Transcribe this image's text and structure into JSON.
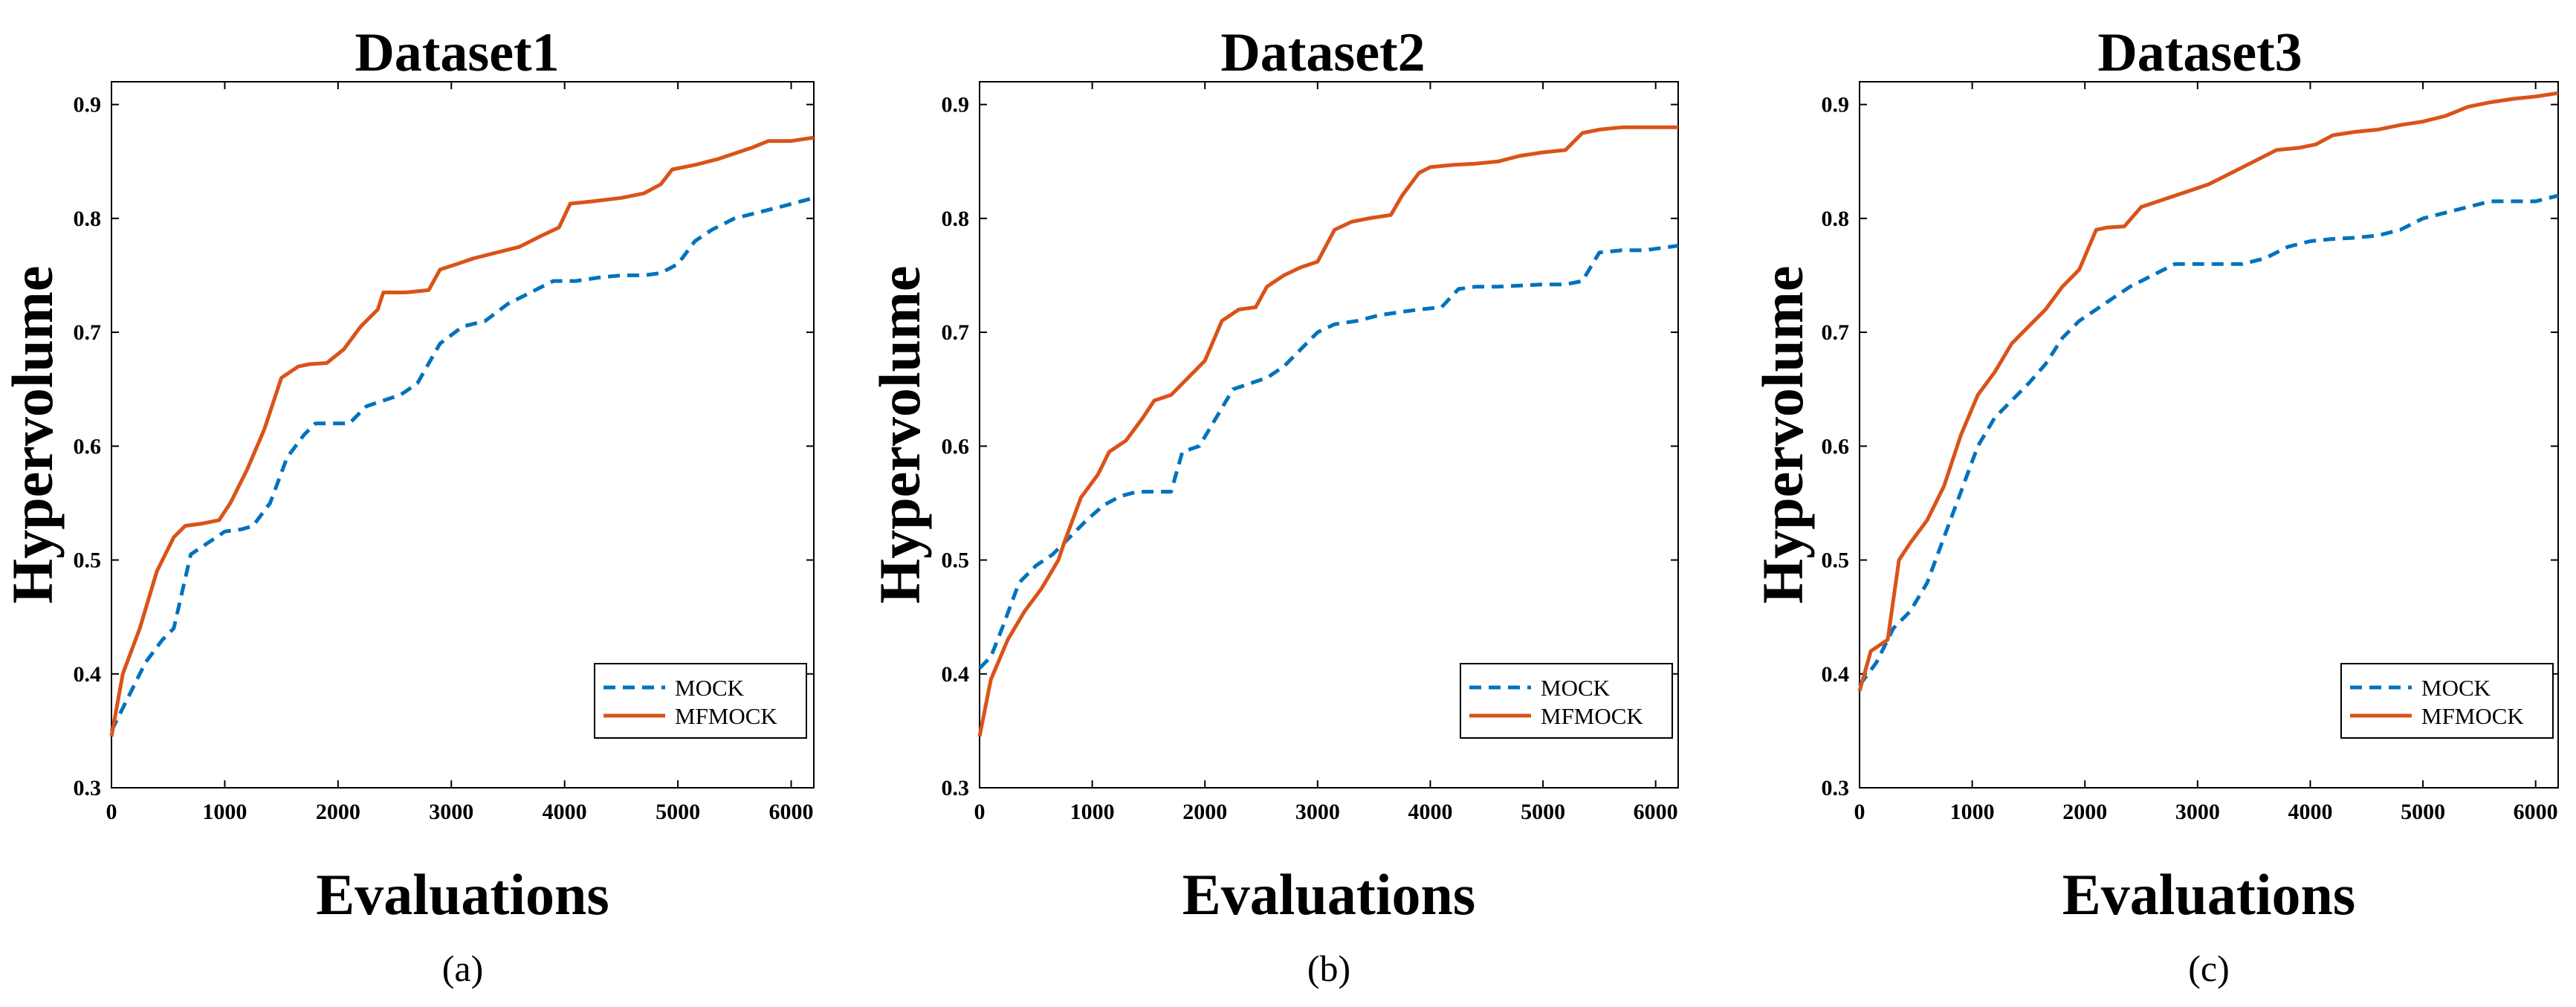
{
  "colors": {
    "mock": "#0072BD",
    "mfmock": "#D95319",
    "axis": "#000000"
  },
  "chart_data": [
    {
      "type": "line",
      "caption": "(a)",
      "title": "Dataset1",
      "xlabel": "Evaluations",
      "ylabel": "Hypervolume",
      "xlim": [
        0,
        6200
      ],
      "ylim": [
        0.3,
        0.92
      ],
      "xticks": [
        0,
        1000,
        2000,
        3000,
        4000,
        5000,
        6000
      ],
      "yticks": [
        0.3,
        0.4,
        0.5,
        0.6,
        0.7,
        0.8,
        0.9
      ],
      "ytick_labels": [
        "0.3",
        "0.4",
        "0.5",
        "0.6",
        "0.7",
        "0.8",
        "0.9"
      ],
      "legend_position": "bottom-right",
      "series": [
        {
          "name": "MOCK",
          "style": "dashed",
          "x": [
            0,
            150,
            300,
            450,
            550,
            700,
            850,
            1000,
            1150,
            1250,
            1400,
            1550,
            1700,
            1800,
            2000,
            2100,
            2250,
            2400,
            2550,
            2700,
            2900,
            3100,
            3300,
            3500,
            3700,
            3900,
            4100,
            4300,
            4500,
            4700,
            4850,
            5000,
            5150,
            5300,
            5500,
            5700,
            5900,
            6200
          ],
          "y": [
            0.35,
            0.38,
            0.41,
            0.43,
            0.44,
            0.505,
            0.515,
            0.525,
            0.527,
            0.53,
            0.55,
            0.59,
            0.61,
            0.62,
            0.62,
            0.62,
            0.635,
            0.64,
            0.645,
            0.655,
            0.69,
            0.705,
            0.71,
            0.725,
            0.735,
            0.745,
            0.745,
            0.748,
            0.75,
            0.75,
            0.752,
            0.76,
            0.78,
            0.79,
            0.8,
            0.805,
            0.81,
            0.818
          ]
        },
        {
          "name": "MFMOCK",
          "style": "solid",
          "x": [
            0,
            100,
            250,
            400,
            550,
            650,
            800,
            950,
            1050,
            1200,
            1350,
            1500,
            1650,
            1750,
            1900,
            2050,
            2200,
            2350,
            2400,
            2600,
            2800,
            2900,
            3050,
            3200,
            3400,
            3600,
            3800,
            3950,
            4050,
            4250,
            4500,
            4700,
            4850,
            4950,
            5150,
            5350,
            5500,
            5650,
            5800,
            6000,
            6200
          ],
          "y": [
            0.345,
            0.4,
            0.44,
            0.49,
            0.52,
            0.53,
            0.532,
            0.535,
            0.55,
            0.58,
            0.615,
            0.66,
            0.67,
            0.672,
            0.673,
            0.685,
            0.705,
            0.72,
            0.735,
            0.735,
            0.737,
            0.755,
            0.76,
            0.765,
            0.77,
            0.775,
            0.785,
            0.792,
            0.813,
            0.815,
            0.818,
            0.822,
            0.83,
            0.843,
            0.847,
            0.852,
            0.857,
            0.862,
            0.868,
            0.868,
            0.871
          ]
        }
      ]
    },
    {
      "type": "line",
      "caption": "(b)",
      "title": "Dataset2",
      "xlabel": "Evaluations",
      "ylabel": "Hypervolume",
      "xlim": [
        0,
        6200
      ],
      "ylim": [
        0.3,
        0.92
      ],
      "xticks": [
        0,
        1000,
        2000,
        3000,
        4000,
        5000,
        6000
      ],
      "yticks": [
        0.3,
        0.4,
        0.5,
        0.6,
        0.7,
        0.8,
        0.9
      ],
      "ytick_labels": [
        "0.3",
        "0.4",
        "0.5",
        "0.6",
        "0.7",
        "0.8",
        "0.9"
      ],
      "legend_position": "bottom-right",
      "series": [
        {
          "name": "MOCK",
          "style": "dashed",
          "x": [
            0,
            100,
            200,
            350,
            500,
            650,
            800,
            950,
            1100,
            1250,
            1400,
            1550,
            1700,
            1800,
            1950,
            2100,
            2250,
            2400,
            2550,
            2700,
            2850,
            3000,
            3150,
            3350,
            3550,
            3750,
            3900,
            4100,
            4250,
            4400,
            4600,
            4800,
            5000,
            5200,
            5350,
            5500,
            5700,
            5900,
            6200
          ],
          "y": [
            0.405,
            0.415,
            0.44,
            0.48,
            0.495,
            0.505,
            0.52,
            0.535,
            0.548,
            0.556,
            0.56,
            0.56,
            0.56,
            0.595,
            0.6,
            0.625,
            0.65,
            0.655,
            0.66,
            0.67,
            0.685,
            0.7,
            0.707,
            0.71,
            0.715,
            0.718,
            0.72,
            0.722,
            0.738,
            0.74,
            0.74,
            0.741,
            0.742,
            0.742,
            0.745,
            0.77,
            0.772,
            0.772,
            0.776
          ]
        },
        {
          "name": "MFMOCK",
          "style": "solid",
          "x": [
            0,
            100,
            250,
            400,
            550,
            700,
            750,
            900,
            1050,
            1150,
            1300,
            1450,
            1550,
            1700,
            1850,
            2000,
            2150,
            2300,
            2450,
            2550,
            2700,
            2850,
            3000,
            3150,
            3300,
            3450,
            3650,
            3750,
            3900,
            4000,
            4200,
            4400,
            4600,
            4800,
            5000,
            5200,
            5350,
            5500,
            5700,
            6000,
            6200
          ],
          "y": [
            0.345,
            0.395,
            0.43,
            0.455,
            0.475,
            0.5,
            0.515,
            0.555,
            0.575,
            0.595,
            0.605,
            0.625,
            0.64,
            0.645,
            0.66,
            0.675,
            0.71,
            0.72,
            0.722,
            0.74,
            0.75,
            0.757,
            0.762,
            0.79,
            0.797,
            0.8,
            0.803,
            0.82,
            0.84,
            0.845,
            0.847,
            0.848,
            0.85,
            0.855,
            0.858,
            0.86,
            0.875,
            0.878,
            0.88,
            0.88,
            0.88
          ]
        }
      ]
    },
    {
      "type": "line",
      "caption": "(c)",
      "title": "Dataset3",
      "xlabel": "Evaluations",
      "ylabel": "Hypervolume",
      "xlim": [
        0,
        6200
      ],
      "ylim": [
        0.3,
        0.92
      ],
      "xticks": [
        0,
        1000,
        2000,
        3000,
        4000,
        5000,
        6000
      ],
      "yticks": [
        0.3,
        0.4,
        0.5,
        0.6,
        0.7,
        0.8,
        0.9
      ],
      "ytick_labels": [
        "0.3",
        "0.4",
        "0.5",
        "0.6",
        "0.7",
        "0.8",
        "0.9"
      ],
      "legend_position": "bottom-right",
      "series": [
        {
          "name": "MOCK",
          "style": "dashed",
          "x": [
            0,
            150,
            300,
            450,
            600,
            750,
            900,
            1050,
            1200,
            1350,
            1500,
            1650,
            1800,
            1950,
            2100,
            2250,
            2400,
            2600,
            2800,
            3000,
            3200,
            3400,
            3600,
            3800,
            4000,
            4200,
            4400,
            4600,
            4800,
            5000,
            5200,
            5400,
            5600,
            5800,
            6000,
            6200
          ],
          "y": [
            0.39,
            0.41,
            0.44,
            0.455,
            0.48,
            0.52,
            0.56,
            0.6,
            0.625,
            0.64,
            0.655,
            0.672,
            0.695,
            0.71,
            0.72,
            0.73,
            0.74,
            0.75,
            0.76,
            0.76,
            0.76,
            0.76,
            0.765,
            0.775,
            0.78,
            0.782,
            0.783,
            0.785,
            0.79,
            0.8,
            0.805,
            0.81,
            0.815,
            0.815,
            0.815,
            0.82
          ]
        },
        {
          "name": "MFMOCK",
          "style": "solid",
          "x": [
            0,
            100,
            250,
            350,
            450,
            600,
            750,
            900,
            1050,
            1200,
            1350,
            1500,
            1650,
            1800,
            1950,
            2100,
            2200,
            2350,
            2500,
            2650,
            2800,
            2950,
            3100,
            3300,
            3500,
            3700,
            3900,
            4050,
            4200,
            4400,
            4600,
            4800,
            5000,
            5200,
            5400,
            5600,
            5800,
            6000,
            6200
          ],
          "y": [
            0.385,
            0.42,
            0.43,
            0.5,
            0.515,
            0.535,
            0.565,
            0.61,
            0.645,
            0.665,
            0.69,
            0.705,
            0.72,
            0.74,
            0.755,
            0.79,
            0.792,
            0.793,
            0.81,
            0.815,
            0.82,
            0.825,
            0.83,
            0.84,
            0.85,
            0.86,
            0.862,
            0.865,
            0.873,
            0.876,
            0.878,
            0.882,
            0.885,
            0.89,
            0.898,
            0.902,
            0.905,
            0.907,
            0.91
          ]
        }
      ]
    }
  ]
}
